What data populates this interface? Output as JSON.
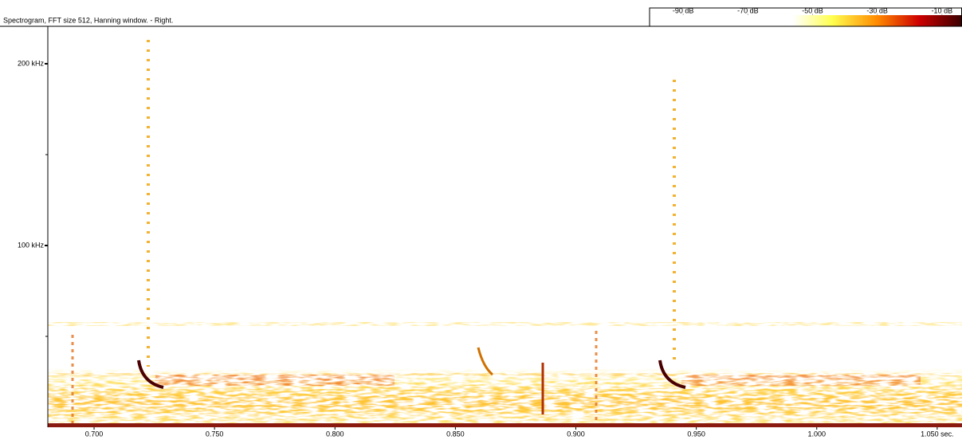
{
  "chart_data": {
    "type": "spectrogram",
    "title": "Spectrogram, FFT size 512, Hanning window. - Right.",
    "xlim": [
      0.6808,
      1.0603
    ],
    "xticks": [
      {
        "value": 0.7,
        "label": "0.700"
      },
      {
        "value": 0.75,
        "label": "0.750"
      },
      {
        "value": 0.8,
        "label": "0.800"
      },
      {
        "value": 0.85,
        "label": "0.850"
      },
      {
        "value": 0.9,
        "label": "0.900"
      },
      {
        "value": 0.95,
        "label": "0.950"
      },
      {
        "value": 1.0,
        "label": "1.000"
      },
      {
        "value": 1.05,
        "label": "1.050 sec."
      }
    ],
    "ylim": [
      0,
      220.6
    ],
    "yticks": [
      {
        "value": 100,
        "label": "100 kHz"
      },
      {
        "value": 200,
        "label": "200 kHz"
      }
    ],
    "yminorticks": [
      50,
      150
    ],
    "colorbar_lim": [
      -100.4,
      -3.8
    ],
    "colorbar_ticks": [
      {
        "value": -90,
        "label": "-90 dB"
      },
      {
        "value": -70,
        "label": "-70 dB"
      },
      {
        "value": -50,
        "label": "-50 dB"
      },
      {
        "value": -30,
        "label": "-30 dB"
      },
      {
        "value": -10,
        "label": "-10 dB"
      }
    ],
    "colormap": [
      {
        "value": -100.4,
        "color": "#ffffff"
      },
      {
        "value": -56,
        "color": "#ffffff"
      },
      {
        "value": -44,
        "color": "#ffff50"
      },
      {
        "value": -30,
        "color": "#ff8a00"
      },
      {
        "value": -17,
        "color": "#cc0000"
      },
      {
        "value": -3.8,
        "color": "#3a0000"
      }
    ]
  }
}
